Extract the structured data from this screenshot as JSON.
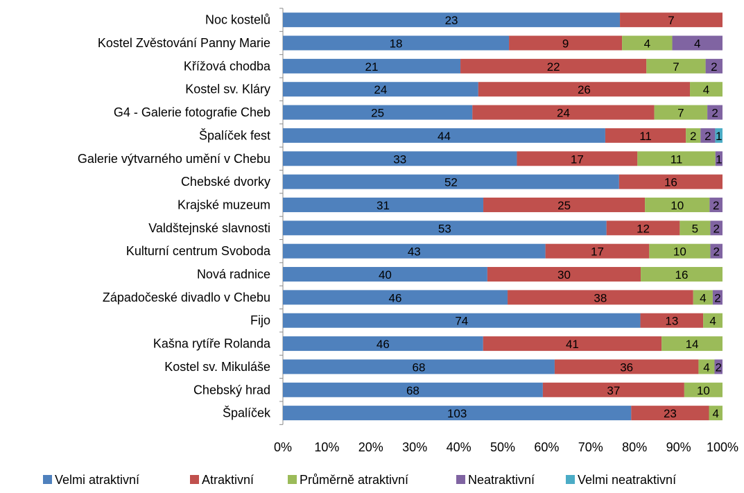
{
  "chart_data": {
    "type": "stacked-bar-100-horizontal",
    "categories": [
      "Noc kostelů",
      "Kostel Zvěstování Panny Marie",
      "Křížová chodba",
      "Kostel sv. Kláry",
      "G4 - Galerie fotografie Cheb",
      "Špalíček fest",
      "Galerie výtvarného umění v Chebu",
      "Chebské dvorky",
      "Krajské muzeum",
      "Valdštejnské slavnosti",
      "Kulturní centrum Svoboda",
      "Nová radnice",
      "Západočeské divadlo v Chebu",
      "Fijo",
      "Kašna rytíře Rolanda",
      "Kostel sv. Mikuláše",
      "Chebský hrad",
      "Špalíček"
    ],
    "series": [
      {
        "name": "Velmi atraktivní",
        "color": "#4f81bd",
        "values": [
          23,
          18,
          21,
          24,
          25,
          44,
          33,
          52,
          31,
          53,
          43,
          40,
          46,
          74,
          46,
          68,
          68,
          103
        ]
      },
      {
        "name": "Atraktivní",
        "color": "#c0504d",
        "values": [
          7,
          9,
          22,
          26,
          24,
          11,
          17,
          16,
          25,
          12,
          17,
          30,
          38,
          13,
          41,
          36,
          37,
          23
        ]
      },
      {
        "name": "Průměrně atraktivní",
        "color": "#9bbb59",
        "values": [
          null,
          4,
          7,
          4,
          7,
          2,
          11,
          null,
          10,
          5,
          10,
          16,
          4,
          4,
          14,
          4,
          10,
          4
        ]
      },
      {
        "name": "Neatraktivní",
        "color": "#8064a2",
        "values": [
          null,
          4,
          2,
          null,
          2,
          2,
          1,
          null,
          2,
          2,
          2,
          null,
          2,
          null,
          null,
          2,
          null,
          null
        ]
      },
      {
        "name": "Velmi neatraktivní",
        "color": "#4bacc6",
        "values": [
          null,
          null,
          null,
          null,
          null,
          1,
          null,
          null,
          null,
          null,
          null,
          null,
          null,
          null,
          null,
          null,
          null,
          null
        ]
      }
    ],
    "xlim": [
      0,
      100
    ],
    "xticks": [
      {
        "value": 0,
        "label": "0%"
      },
      {
        "value": 10,
        "label": "10%"
      },
      {
        "value": 20,
        "label": "20%"
      },
      {
        "value": 30,
        "label": "30%"
      },
      {
        "value": 40,
        "label": "40%"
      },
      {
        "value": 50,
        "label": "50%"
      },
      {
        "value": 60,
        "label": "60%"
      },
      {
        "value": 70,
        "label": "70%"
      },
      {
        "value": 80,
        "label": "80%"
      },
      {
        "value": 90,
        "label": "90%"
      },
      {
        "value": 100,
        "label": "100%"
      }
    ],
    "legend": "bottom"
  }
}
